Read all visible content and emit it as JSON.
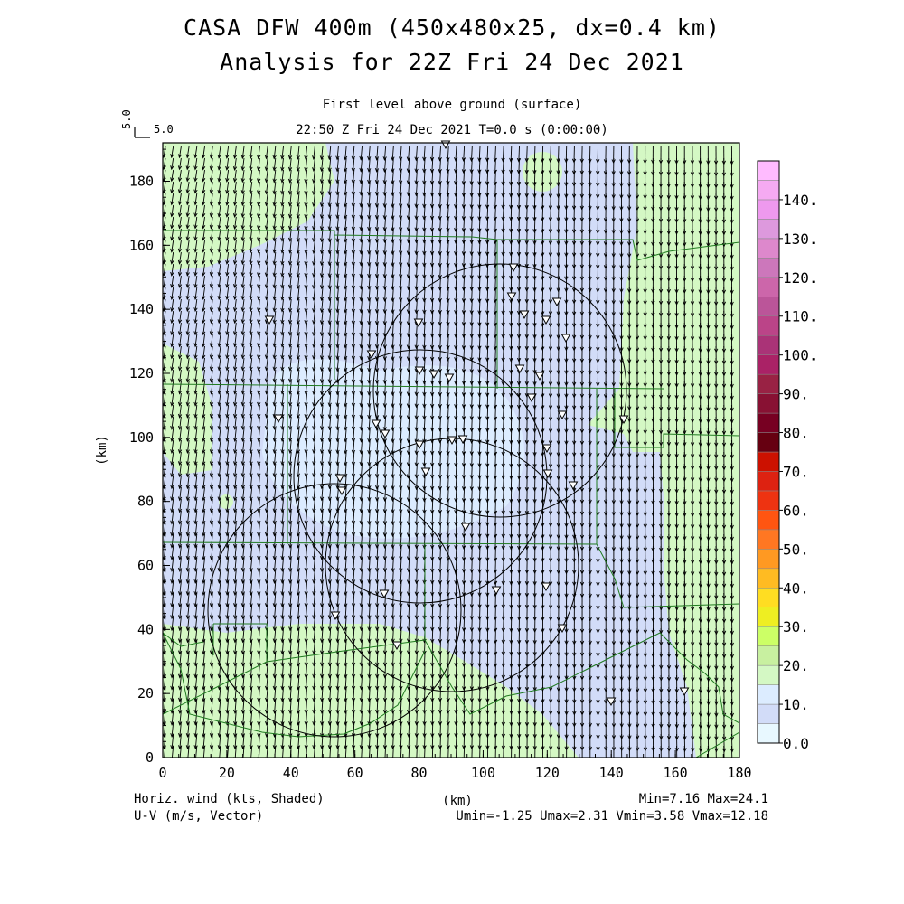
{
  "titles": {
    "line1": "CASA DFW 400m (450x480x25, dx=0.4 km)",
    "line2": "Analysis for 22Z Fri 24 Dec 2021",
    "level": "First level above ground (surface)",
    "time": "22:50 Z Fri 24 Dec 2021    T=0.0 s (0:00:00)"
  },
  "ref_vector": {
    "label": "5.0",
    "side_label": "5.0"
  },
  "axes": {
    "x_label": "(km)",
    "y_label": "(km)",
    "x_ticks": [
      "0",
      "20",
      "40",
      "60",
      "80",
      "100",
      "120",
      "140",
      "160",
      "180"
    ],
    "y_ticks": [
      "0",
      "20",
      "40",
      "60",
      "80",
      "100",
      "120",
      "140",
      "160",
      "180"
    ]
  },
  "colorbar": {
    "labels": [
      "0.0",
      "10.",
      "20.",
      "30.",
      "40.",
      "50.",
      "60.",
      "70.",
      "80.",
      "90.",
      "100.",
      "110.",
      "120.",
      "130.",
      "140."
    ],
    "colors": [
      "#e8f8ff",
      "#d2dcf8",
      "#dcecff",
      "#d4f8c4",
      "#c8f0a0",
      "#ccff66",
      "#eeee22",
      "#ffdd22",
      "#ffbb22",
      "#ff9922",
      "#ff7722",
      "#ff5511",
      "#ee3311",
      "#dd2211",
      "#cc1100",
      "#660011",
      "#770022",
      "#881133",
      "#992244",
      "#aa2266",
      "#aa3377",
      "#bb4488",
      "#bb5599",
      "#cc66aa",
      "#cc77bb",
      "#dd88cc",
      "#dd99dd",
      "#ee99ee",
      "#f5aaf2",
      "#ffbbff"
    ]
  },
  "footer": {
    "left1": "Horiz. wind (kts, Shaded)",
    "left2": "U-V (m/s, Vector)",
    "center": "(km)",
    "right1": "Min=7.16 Max=24.1",
    "right2": "Umin=-1.25 Umax=2.31 Vmin=3.58 Vmax=12.18"
  },
  "map_colors": {
    "blue": "#d2dcf8",
    "light": "#dcecff",
    "green": "#d4f8c4",
    "boundary": "#207a20"
  }
}
